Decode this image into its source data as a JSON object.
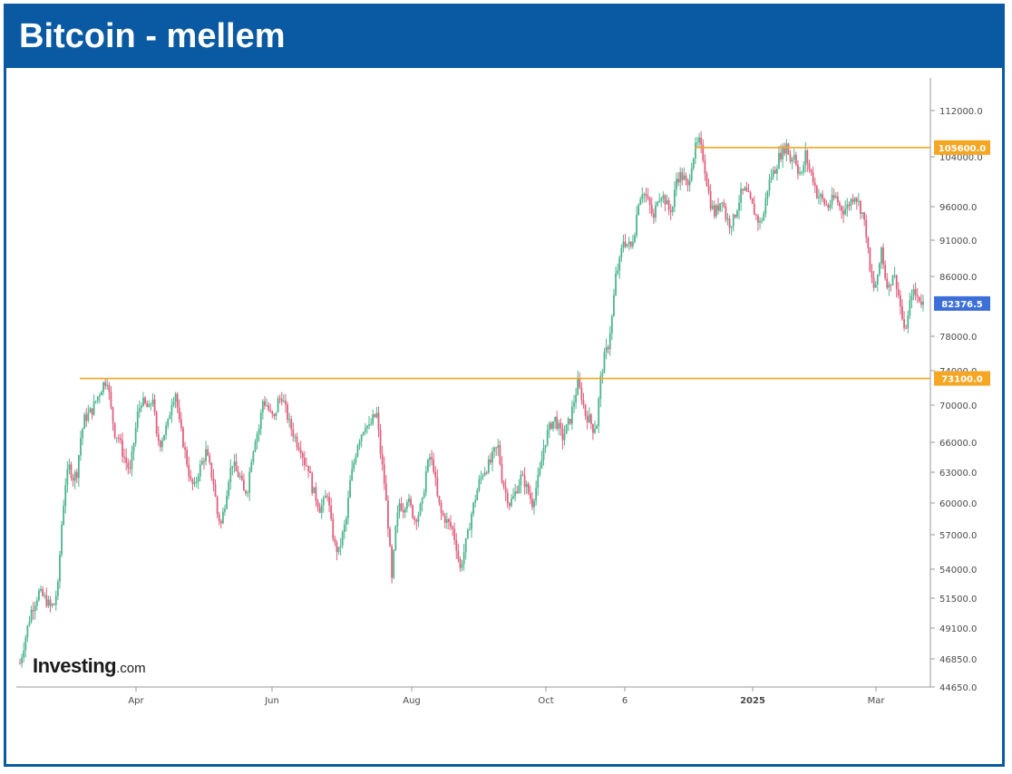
{
  "title": "Bitcoin - mellem",
  "logo": {
    "main": "Investing",
    "suffix": ".com"
  },
  "colors": {
    "frame": "#0a5aa3",
    "up": "#4cb58d",
    "down": "#e0607e",
    "level": "#f5a623",
    "current_badge": "#3d6fd8"
  },
  "chart_data": {
    "type": "candlestick",
    "title": "",
    "xlabel": "",
    "ylabel": "",
    "y_tick_labels": [
      "112000.0",
      "104000.0",
      "96000.0",
      "91000.0",
      "86000.0",
      "78000.0",
      "74000.0",
      "70000.0",
      "66000.0",
      "63000.0",
      "60000.0",
      "57000.0",
      "54000.0",
      "51500.0",
      "49100.0",
      "46850.0",
      "44650.0"
    ],
    "x_tick_labels": [
      "Apr",
      "Jun",
      "Aug",
      "Oct",
      "6",
      "2025",
      "Mar"
    ],
    "horizontal_levels": [
      {
        "value": 105600.0,
        "label": "105600.0"
      },
      {
        "value": 73100.0,
        "label": "73100.0"
      }
    ],
    "current_price": {
      "value": 82376.5,
      "label": "82376.5"
    },
    "price_path": [
      [
        0,
        46500
      ],
      [
        3,
        48500
      ],
      [
        6,
        50500
      ],
      [
        10,
        52000
      ],
      [
        13,
        51500
      ],
      [
        16,
        50800
      ],
      [
        18,
        51000
      ],
      [
        20,
        52500
      ],
      [
        22,
        58000
      ],
      [
        24,
        62000
      ],
      [
        26,
        63500
      ],
      [
        28,
        62500
      ],
      [
        30,
        63000
      ],
      [
        32,
        66500
      ],
      [
        34,
        68500
      ],
      [
        36,
        69000
      ],
      [
        38,
        69500
      ],
      [
        40,
        70500
      ],
      [
        42,
        71500
      ],
      [
        44,
        72500
      ],
      [
        46,
        73000
      ],
      [
        48,
        69500
      ],
      [
        50,
        67000
      ],
      [
        52,
        66500
      ],
      [
        54,
        65000
      ],
      [
        56,
        64000
      ],
      [
        58,
        63000
      ],
      [
        60,
        66000
      ],
      [
        62,
        69000
      ],
      [
        64,
        70500
      ],
      [
        66,
        70000
      ],
      [
        68,
        69500
      ],
      [
        70,
        71000
      ],
      [
        72,
        66500
      ],
      [
        74,
        66000
      ],
      [
        76,
        67000
      ],
      [
        78,
        68000
      ],
      [
        80,
        70500
      ],
      [
        82,
        71500
      ],
      [
        84,
        68000
      ],
      [
        86,
        66000
      ],
      [
        88,
        64000
      ],
      [
        90,
        62000
      ],
      [
        92,
        61500
      ],
      [
        94,
        63000
      ],
      [
        96,
        64000
      ],
      [
        98,
        65000
      ],
      [
        100,
        63500
      ],
      [
        102,
        62000
      ],
      [
        104,
        59000
      ],
      [
        106,
        58000
      ],
      [
        108,
        60000
      ],
      [
        110,
        62500
      ],
      [
        112,
        64000
      ],
      [
        114,
        63000
      ],
      [
        116,
        62500
      ],
      [
        118,
        61000
      ],
      [
        120,
        61500
      ],
      [
        122,
        64500
      ],
      [
        124,
        66500
      ],
      [
        126,
        67500
      ],
      [
        128,
        70500
      ],
      [
        130,
        70000
      ],
      [
        132,
        69000
      ],
      [
        134,
        68500
      ],
      [
        136,
        70500
      ],
      [
        138,
        71000
      ],
      [
        140,
        69500
      ],
      [
        142,
        68000
      ],
      [
        144,
        67000
      ],
      [
        146,
        66000
      ],
      [
        148,
        65500
      ],
      [
        150,
        64000
      ],
      [
        152,
        63500
      ],
      [
        154,
        61500
      ],
      [
        156,
        60500
      ],
      [
        158,
        59500
      ],
      [
        160,
        60000
      ],
      [
        162,
        61000
      ],
      [
        164,
        58000
      ],
      [
        166,
        56000
      ],
      [
        168,
        55500
      ],
      [
        170,
        57000
      ],
      [
        172,
        58500
      ],
      [
        174,
        62000
      ],
      [
        176,
        64000
      ],
      [
        178,
        66000
      ],
      [
        180,
        67000
      ],
      [
        182,
        68000
      ],
      [
        184,
        67500
      ],
      [
        186,
        68500
      ],
      [
        188,
        69000
      ],
      [
        190,
        65000
      ],
      [
        192,
        62000
      ],
      [
        194,
        58000
      ],
      [
        196,
        53000
      ],
      [
        198,
        57500
      ],
      [
        200,
        60000
      ],
      [
        202,
        59500
      ],
      [
        204,
        60500
      ],
      [
        206,
        59500
      ],
      [
        208,
        58500
      ],
      [
        210,
        59000
      ],
      [
        212,
        60000
      ],
      [
        214,
        63000
      ],
      [
        216,
        64500
      ],
      [
        218,
        63500
      ],
      [
        220,
        60500
      ],
      [
        222,
        59000
      ],
      [
        224,
        58500
      ],
      [
        226,
        58000
      ],
      [
        228,
        57500
      ],
      [
        230,
        56000
      ],
      [
        232,
        54000
      ],
      [
        234,
        55500
      ],
      [
        236,
        57000
      ],
      [
        238,
        59000
      ],
      [
        240,
        60500
      ],
      [
        242,
        62000
      ],
      [
        244,
        63000
      ],
      [
        246,
        63500
      ],
      [
        248,
        64000
      ],
      [
        250,
        65000
      ],
      [
        252,
        65500
      ],
      [
        254,
        62500
      ],
      [
        256,
        61000
      ],
      [
        258,
        60000
      ],
      [
        260,
        60500
      ],
      [
        262,
        61500
      ],
      [
        264,
        62500
      ],
      [
        266,
        62000
      ],
      [
        268,
        61000
      ],
      [
        270,
        60000
      ],
      [
        272,
        61500
      ],
      [
        274,
        63000
      ],
      [
        276,
        65500
      ],
      [
        278,
        67000
      ],
      [
        280,
        68000
      ],
      [
        282,
        68500
      ],
      [
        284,
        67500
      ],
      [
        286,
        66500
      ],
      [
        288,
        67500
      ],
      [
        290,
        68500
      ],
      [
        292,
        70500
      ],
      [
        294,
        72500
      ],
      [
        296,
        71000
      ],
      [
        298,
        69000
      ],
      [
        300,
        68500
      ],
      [
        302,
        67500
      ],
      [
        304,
        68000
      ],
      [
        306,
        73000
      ],
      [
        308,
        75500
      ],
      [
        310,
        77000
      ],
      [
        312,
        80500
      ],
      [
        314,
        86000
      ],
      [
        316,
        88000
      ],
      [
        318,
        91000
      ],
      [
        320,
        90500
      ],
      [
        322,
        90000
      ],
      [
        324,
        92500
      ],
      [
        326,
        97000
      ],
      [
        328,
        98500
      ],
      [
        330,
        97500
      ],
      [
        332,
        96000
      ],
      [
        334,
        94000
      ],
      [
        336,
        97500
      ],
      [
        338,
        98000
      ],
      [
        340,
        97000
      ],
      [
        342,
        95500
      ],
      [
        344,
        96000
      ],
      [
        346,
        100500
      ],
      [
        348,
        101000
      ],
      [
        350,
        100500
      ],
      [
        352,
        99000
      ],
      [
        354,
        103000
      ],
      [
        356,
        105500
      ],
      [
        358,
        106500
      ],
      [
        360,
        104000
      ],
      [
        362,
        100000
      ],
      [
        364,
        96500
      ],
      [
        366,
        95000
      ],
      [
        368,
        96000
      ],
      [
        370,
        97500
      ],
      [
        372,
        94500
      ],
      [
        374,
        93500
      ],
      [
        376,
        94000
      ],
      [
        378,
        96000
      ],
      [
        380,
        98000
      ],
      [
        382,
        98500
      ],
      [
        384,
        97500
      ],
      [
        386,
        96000
      ],
      [
        388,
        94500
      ],
      [
        390,
        93500
      ],
      [
        392,
        95000
      ],
      [
        394,
        99000
      ],
      [
        396,
        101000
      ],
      [
        398,
        102000
      ],
      [
        400,
        104000
      ],
      [
        402,
        105000
      ],
      [
        404,
        106000
      ],
      [
        406,
        103500
      ],
      [
        408,
        104500
      ],
      [
        410,
        102000
      ],
      [
        412,
        101000
      ],
      [
        414,
        104500
      ],
      [
        416,
        102000
      ],
      [
        418,
        100500
      ],
      [
        420,
        98000
      ],
      [
        422,
        97500
      ],
      [
        424,
        96500
      ],
      [
        426,
        96000
      ],
      [
        428,
        97000
      ],
      [
        430,
        97500
      ],
      [
        432,
        96000
      ],
      [
        434,
        95500
      ],
      [
        436,
        96000
      ],
      [
        438,
        97000
      ],
      [
        440,
        98000
      ],
      [
        442,
        96500
      ],
      [
        444,
        95000
      ],
      [
        446,
        92000
      ],
      [
        448,
        86500
      ],
      [
        450,
        84500
      ],
      [
        452,
        85500
      ],
      [
        454,
        90000
      ],
      [
        456,
        86000
      ],
      [
        458,
        84500
      ],
      [
        460,
        86500
      ],
      [
        462,
        85000
      ],
      [
        464,
        82000
      ],
      [
        466,
        78500
      ],
      [
        468,
        80500
      ],
      [
        470,
        84000
      ],
      [
        472,
        83500
      ],
      [
        474,
        83000
      ],
      [
        476,
        82376.5
      ]
    ]
  }
}
